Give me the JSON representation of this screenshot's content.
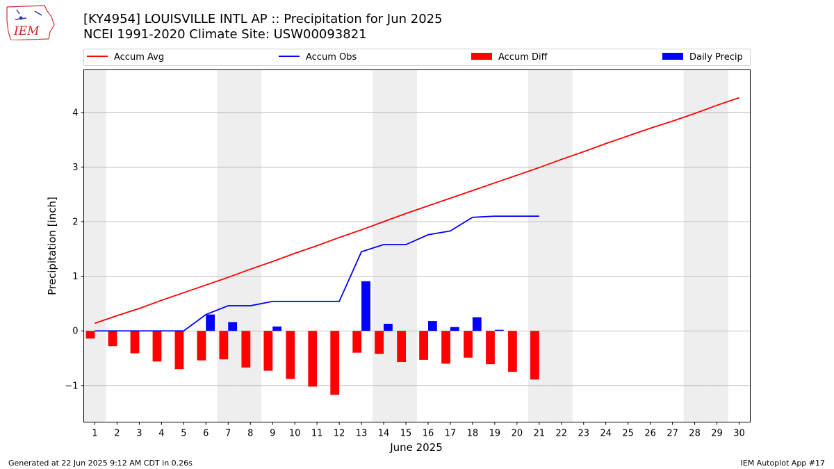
{
  "header": {
    "title_line1": "[KY4954] LOUISVILLE INTL AP :: Precipitation for Jun 2025",
    "title_line2": "NCEI 1991-2020 Climate Site: USW00093821",
    "logo_text": "IEM"
  },
  "footer": {
    "generated": "Generated at 22 Jun 2025 9:12 AM CDT in 0.26s",
    "app": "IEM Autoplot App #17"
  },
  "colors": {
    "avg": "#ff0000",
    "obs": "#0000ff",
    "diff": "#ff0000",
    "daily": "#0000ff",
    "weekend": "#eeeeee",
    "grid": "#b0b0b0"
  },
  "chart_data": {
    "type": "bar",
    "xlabel": "June 2025",
    "ylabel": "Precipitation [inch]",
    "xlim": [
      0.5,
      30.5
    ],
    "ylim": [
      -1.67,
      4.78
    ],
    "yticks": [
      -1,
      0,
      1,
      2,
      3,
      4
    ],
    "ytick_labels": [
      "−1",
      "0",
      "1",
      "2",
      "3",
      "4"
    ],
    "grid": "horizontal",
    "legend_position": "top",
    "legend": [
      "Accum Avg",
      "Accum Obs",
      "Accum Diff",
      "Daily Precip"
    ],
    "days": [
      1,
      2,
      3,
      4,
      5,
      6,
      7,
      8,
      9,
      10,
      11,
      12,
      13,
      14,
      15,
      16,
      17,
      18,
      19,
      20,
      21,
      22,
      23,
      24,
      25,
      26,
      27,
      28,
      29,
      30
    ],
    "weekend_days": [
      1,
      7,
      8,
      14,
      15,
      21,
      22,
      28,
      29
    ],
    "series": [
      {
        "name": "Accum Avg",
        "kind": "line",
        "values": [
          0.14,
          0.28,
          0.41,
          0.56,
          0.7,
          0.84,
          0.98,
          1.13,
          1.27,
          1.42,
          1.56,
          1.71,
          1.85,
          2.0,
          2.15,
          2.29,
          2.43,
          2.57,
          2.71,
          2.85,
          2.99,
          3.14,
          3.28,
          3.43,
          3.57,
          3.71,
          3.84,
          3.98,
          4.13,
          4.27
        ]
      },
      {
        "name": "Accum Obs",
        "kind": "line",
        "values": [
          0.0,
          0.0,
          0.0,
          0.0,
          0.0,
          0.3,
          0.46,
          0.46,
          0.54,
          0.54,
          0.54,
          0.54,
          1.45,
          1.58,
          1.58,
          1.76,
          1.83,
          2.08,
          2.1,
          2.1,
          2.1
        ]
      },
      {
        "name": "Accum Diff",
        "kind": "bar",
        "values": [
          -0.14,
          -0.28,
          -0.41,
          -0.56,
          -0.7,
          -0.54,
          -0.52,
          -0.67,
          -0.73,
          -0.88,
          -1.02,
          -1.17,
          -0.4,
          -0.42,
          -0.57,
          -0.53,
          -0.6,
          -0.49,
          -0.61,
          -0.75,
          -0.89
        ]
      },
      {
        "name": "Daily Precip",
        "kind": "bar",
        "values": [
          0,
          0,
          0,
          0,
          0,
          0.3,
          0.16,
          0,
          0.08,
          0,
          0,
          0,
          0.91,
          0.13,
          0,
          0.18,
          0.07,
          0.25,
          0.02,
          0,
          0
        ]
      }
    ]
  }
}
